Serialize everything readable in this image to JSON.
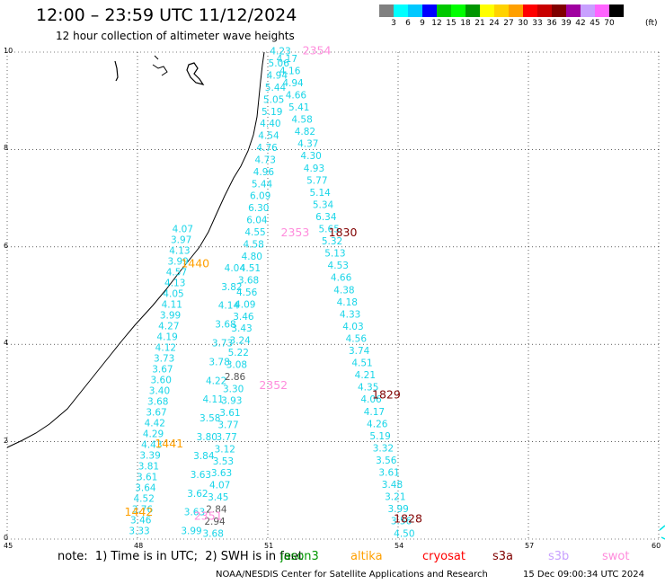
{
  "header": {
    "title": "12:00 – 23:59 UTC 11/12/2024",
    "subtitle": "12 hour collection of altimeter wave heights"
  },
  "colorbar": {
    "colors": [
      "#808080",
      "#00ffff",
      "#00c8ff",
      "#0000ff",
      "#00c800",
      "#00ff00",
      "#009600",
      "#ffff00",
      "#ffd200",
      "#ffa000",
      "#ff0000",
      "#c80000",
      "#800000",
      "#a000a0",
      "#c8a0ff",
      "#ff64ff",
      "#000000"
    ],
    "labels": [
      "3",
      "6",
      "9",
      "12",
      "15",
      "18",
      "21",
      "24",
      "27",
      "30",
      "33",
      "36",
      "39",
      "42",
      "45",
      "70"
    ],
    "units": "(ft)"
  },
  "chart_data": {
    "type": "scatter",
    "xlim": [
      45,
      60
    ],
    "ylim": [
      0,
      10
    ],
    "x_ticks": [
      "45",
      "48",
      "51",
      "54",
      "57",
      "60"
    ],
    "y_ticks": [
      "0",
      "2",
      "4",
      "6",
      "8",
      "10"
    ],
    "grid": true,
    "swh_labels": [
      {
        "lon": 51.2,
        "lat": 9.9,
        "text": "4.23",
        "color": "cyan"
      },
      {
        "lon": 51.2,
        "lat": 9.7,
        "text": "4.17",
        "color": "cyan"
      },
      {
        "lon": 51.2,
        "lat": 9.5,
        "text": "5.06",
        "color": "cyan"
      },
      {
        "lon": 51.2,
        "lat": 9.4,
        "text": "4.16",
        "color": "cyan"
      },
      {
        "lon": 51.2,
        "lat": 9.27,
        "text": "4.94",
        "color": "cyan"
      },
      {
        "lon": 51.2,
        "lat": 9.12,
        "text": "4.94",
        "color": "cyan"
      },
      {
        "lon": 51.3,
        "lat": 9.04,
        "text": "5.44",
        "color": "cyan"
      },
      {
        "lon": 51.2,
        "lat": 8.9,
        "text": "4.66",
        "color": "cyan"
      },
      {
        "lon": 51.4,
        "lat": 8.8,
        "text": "5.05",
        "color": "cyan"
      },
      {
        "lon": 50.9,
        "lat": 8.64,
        "text": "5.41",
        "color": "cyan"
      },
      {
        "lon": 51.4,
        "lat": 8.58,
        "text": "5.19",
        "color": "cyan"
      },
      {
        "lon": 50.8,
        "lat": 8.4,
        "text": "4.58",
        "color": "cyan"
      },
      {
        "lon": 51.3,
        "lat": 8.32,
        "text": "4.40",
        "color": "cyan"
      },
      {
        "lon": 50.8,
        "lat": 8.14,
        "text": "4.82",
        "color": "cyan"
      },
      {
        "lon": 51.3,
        "lat": 8.08,
        "text": "4.54",
        "color": "cyan"
      },
      {
        "lon": 50.7,
        "lat": 7.84,
        "text": "4.37",
        "color": "cyan"
      },
      {
        "lon": 51.4,
        "lat": 7.84,
        "text": "4.76",
        "color": "cyan"
      },
      {
        "lon": 50.6,
        "lat": 7.54,
        "text": "4.30",
        "color": "cyan"
      },
      {
        "lon": 51.5,
        "lat": 7.54,
        "text": "4.73",
        "color": "cyan"
      },
      {
        "lon": 50.6,
        "lat": 7.24,
        "text": "4.93",
        "color": "cyan"
      },
      {
        "lon": 51.5,
        "lat": 7.24,
        "text": "4.96",
        "color": "cyan"
      },
      {
        "lon": 50.5,
        "lat": 6.94,
        "text": "5.77",
        "color": "cyan"
      },
      {
        "lon": 51.5,
        "lat": 6.94,
        "text": "5.44",
        "color": "cyan"
      },
      {
        "lon": 50.4,
        "lat": 6.64,
        "text": "5.14",
        "color": "cyan"
      },
      {
        "lon": 51.6,
        "lat": 6.64,
        "text": "6.09",
        "color": "cyan"
      },
      {
        "lon": 50.4,
        "lat": 6.34,
        "text": "5.34",
        "color": "cyan"
      },
      {
        "lon": 51.7,
        "lat": 6.34,
        "text": "6.30",
        "color": "cyan"
      },
      {
        "lon": 50.4,
        "lat": 6.04,
        "text": "6.34",
        "color": "cyan"
      },
      {
        "lon": 51.8,
        "lat": 6.04,
        "text": "6.04",
        "color": "cyan"
      },
      {
        "lon": 50.3,
        "lat": 5.74,
        "text": "5.65",
        "color": "cyan"
      },
      {
        "lon": 51.8,
        "lat": 5.74,
        "text": "4.55",
        "color": "cyan"
      },
      {
        "lon": 50.3,
        "lat": 5.44,
        "text": "5.32",
        "color": "cyan"
      },
      {
        "lon": 51.9,
        "lat": 5.44,
        "text": "4.58",
        "color": "cyan"
      },
      {
        "lon": 50.2,
        "lat": 5.14,
        "text": "5.13",
        "color": "cyan"
      },
      {
        "lon": 52.0,
        "lat": 5.14,
        "text": "4.80",
        "color": "cyan"
      },
      {
        "lon": 50.2,
        "lat": 4.84,
        "text": "4.53",
        "color": "cyan"
      },
      {
        "lon": 52.1,
        "lat": 4.84,
        "text": "4.51",
        "color": "cyan"
      },
      {
        "lon": 50.1,
        "lat": 4.54,
        "text": "4.66",
        "color": "cyan"
      },
      {
        "lon": 52.1,
        "lat": 4.54,
        "text": "3.68",
        "color": "cyan"
      },
      {
        "lon": 50.1,
        "lat": 4.24,
        "text": "4.38",
        "color": "cyan"
      },
      {
        "lon": 52.2,
        "lat": 4.24,
        "text": "4.56",
        "color": "cyan"
      },
      {
        "lon": 50.0,
        "lat": 3.94,
        "text": "4.18",
        "color": "cyan"
      },
      {
        "lon": 52.3,
        "lat": 3.94,
        "text": "4.09",
        "color": "cyan"
      },
      {
        "lon": 50.0,
        "lat": 3.64,
        "text": "4.33",
        "color": "cyan"
      },
      {
        "lon": 52.3,
        "lat": 3.64,
        "text": "3.46",
        "color": "cyan"
      },
      {
        "lon": 49.9,
        "lat": 3.34,
        "text": "4.03",
        "color": "cyan"
      },
      {
        "lon": 52.4,
        "lat": 3.34,
        "text": "3.43",
        "color": "cyan"
      },
      {
        "lon": 49.9,
        "lat": 3.04,
        "text": "4.56",
        "color": "cyan"
      },
      {
        "lon": 52.4,
        "lat": 3.04,
        "text": "3.24",
        "color": "cyan"
      },
      {
        "lon": 49.8,
        "lat": 2.74,
        "text": "3.74",
        "color": "cyan"
      },
      {
        "lon": 52.5,
        "lat": 2.74,
        "text": "5.22",
        "color": "cyan"
      },
      {
        "lon": 49.8,
        "lat": 2.44,
        "text": "4.51",
        "color": "cyan"
      },
      {
        "lon": 52.5,
        "lat": 2.44,
        "text": "3.08",
        "color": "cyan"
      },
      {
        "lon": 49.7,
        "lat": 2.14,
        "text": "4.21",
        "color": "cyan"
      },
      {
        "lon": 52.6,
        "lat": 2.14,
        "text": "2.86",
        "color": "grey"
      },
      {
        "lon": 49.7,
        "lat": 1.84,
        "text": "4.35",
        "color": "cyan"
      },
      {
        "lon": 52.6,
        "lat": 1.84,
        "text": "3.30",
        "color": "cyan"
      },
      {
        "lon": 49.6,
        "lat": 1.54,
        "text": "4.06",
        "color": "cyan"
      },
      {
        "lon": 52.7,
        "lat": 1.54,
        "text": "3.93",
        "color": "cyan"
      },
      {
        "lon": 49.6,
        "lat": 1.24,
        "text": "4.17",
        "color": "cyan"
      },
      {
        "lon": 52.7,
        "lat": 1.24,
        "text": "3.61",
        "color": "cyan"
      },
      {
        "lon": 49.5,
        "lat": 0.94,
        "text": "4.26",
        "color": "cyan"
      },
      {
        "lon": 52.8,
        "lat": 0.94,
        "text": "3.77",
        "color": "cyan"
      },
      {
        "lon": 49.5,
        "lat": 0.64,
        "text": "5.19",
        "color": "cyan"
      },
      {
        "lon": 52.8,
        "lat": 0.64,
        "text": "3.77",
        "color": "cyan"
      },
      {
        "lon": 49.4,
        "lat": 0.34,
        "text": "3.32",
        "color": "cyan"
      },
      {
        "lon": 52.9,
        "lat": 0.34,
        "text": "3.12",
        "color": "cyan"
      },
      {
        "lon": 49.4,
        "lat": 0.04,
        "text": "3.56",
        "color": "cyan"
      },
      {
        "lon": 52.9,
        "lat": 0.04,
        "text": "3.53",
        "color": "cyan"
      }
    ],
    "lat_labels_extra": [],
    "track_ids": [
      {
        "lon": 51.8,
        "lat": 9.95,
        "text": "2354",
        "color": "#ff8cdc"
      },
      {
        "lon": 51.3,
        "lat": 6.22,
        "text": "2353",
        "color": "#ff8cdc"
      },
      {
        "lon": 52.4,
        "lat": 6.22,
        "text": "1830",
        "color": "#800000"
      },
      {
        "lon": 49.0,
        "lat": 5.58,
        "text": "1440",
        "color": "#ffa000"
      },
      {
        "lon": 50.8,
        "lat": 3.08,
        "text": "2352",
        "color": "#ff8cdc"
      },
      {
        "lon": 53.4,
        "lat": 2.89,
        "text": "1829",
        "color": "#800000"
      },
      {
        "lon": 48.4,
        "lat": 1.88,
        "text": "1441",
        "color": "#ffa000"
      },
      {
        "lon": 49.3,
        "lat": 0.4,
        "text": "2351",
        "color": "#ff8cdc"
      },
      {
        "lon": 47.7,
        "lat": 0.48,
        "text": "1442",
        "color": "#ffa000"
      },
      {
        "lon": 53.9,
        "lat": 0.34,
        "text": "1828",
        "color": "#800000"
      }
    ],
    "west_track": [
      "4.07",
      "3.97",
      "4.13",
      "3.99",
      "4.57",
      "4.13",
      "4.05",
      "4.11",
      "3.99",
      "4.27",
      "4.19",
      "4.12",
      "3.73",
      "3.67",
      "3.60",
      "3.40",
      "3.68",
      "3.67",
      "4.42",
      "4.29",
      "4.43",
      "3.39",
      "3.81",
      "3.61",
      "3.64",
      "4.52",
      "3.76",
      "3.46",
      "3.33"
    ],
    "west_track_mid": [
      "4.04",
      "3.82",
      "4.14",
      "3.68",
      "3.73",
      "3.78",
      "4.22",
      "4.11",
      "3.58",
      "3.80",
      "3.84",
      "3.63",
      "3.62",
      "3.63",
      "3.99"
    ],
    "mid_track": [
      "4.23",
      "4.17",
      "5.06",
      "4.16",
      "4.94",
      "4.94",
      "5.44",
      "4.66",
      "5.05",
      "5.41",
      "5.19",
      "4.58",
      "4.40",
      "4.82",
      "4.54",
      "4.37",
      "4.76",
      "4.30",
      "4.73",
      "4.93",
      "4.96",
      "5.77",
      "5.44",
      "5.14",
      "6.09",
      "5.34",
      "6.30",
      "6.34",
      "6.04",
      "5.65",
      "4.55",
      "5.32",
      "4.58",
      "5.13",
      "4.80",
      "4.53",
      "4.51",
      "4.66",
      "3.68",
      "4.38",
      "4.56",
      "4.18",
      "4.09",
      "4.33",
      "3.46",
      "4.03",
      "3.43",
      "4.56",
      "3.24",
      "3.74",
      "5.22",
      "4.51",
      "3.08",
      "4.21",
      "2.86",
      "4.35",
      "3.30",
      "4.06",
      "3.93",
      "4.17",
      "3.61",
      "4.26",
      "3.77",
      "5.19",
      "3.77",
      "3.32",
      "3.12",
      "3.56",
      "3.53",
      "3.61",
      "3.63",
      "3.48",
      "4.07",
      "3.21",
      "3.45",
      "3.99",
      "2.84",
      "3.56",
      "2.94",
      "4.50",
      "3.68"
    ]
  },
  "footer": {
    "note": "note:  1) Time is in UTC;  2) SWH is in feet",
    "satellites": [
      {
        "name": "jason3",
        "color": "#009600"
      },
      {
        "name": "altika",
        "color": "#ffa000"
      },
      {
        "name": "cryosat",
        "color": "#ff0000"
      },
      {
        "name": "s3a",
        "color": "#800000"
      },
      {
        "name": "s3b",
        "color": "#c8a0ff"
      },
      {
        "name": "swot",
        "color": "#ff8cdc"
      }
    ],
    "credit": "NOAA/NESDIS Center for Satellite Applications and Research",
    "datestamp": "15 Dec 09:00:34 UTC 2024"
  }
}
